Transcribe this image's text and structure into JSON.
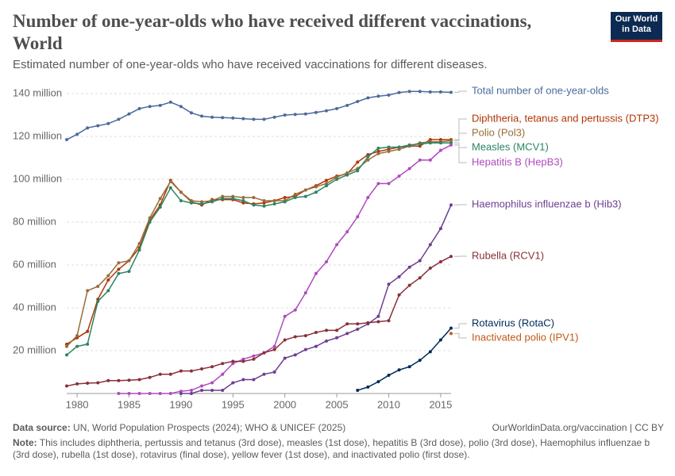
{
  "chart_data": {
    "type": "line",
    "title": "Number of one-year-olds who have received different vaccinations, World",
    "subtitle": "Estimated number of one-year-olds who have received vaccinations for different diseases.",
    "logo": [
      "Our World",
      "in Data"
    ],
    "source_label": "Data source:",
    "source": "UN, World Population Prospects (2024); WHO & UNICEF (2025)",
    "url": "OurWorldinData.org/vaccination | CC BY",
    "note_label": "Note:",
    "note": "This includes diphtheria, pertussis and tetanus (3rd dose), measles (1st dose), hepatitis B (3rd dose), polio (3rd dose), Haemophilus influenzae b (3rd dose), rubella (1st dose), rotavirus (final dose), yellow fever (1st dose), and inactivated polio (first dose).",
    "x": [
      1979,
      1980,
      1981,
      1982,
      1983,
      1984,
      1985,
      1986,
      1987,
      1988,
      1989,
      1990,
      1991,
      1992,
      1993,
      1994,
      1995,
      1996,
      1997,
      1998,
      1999,
      2000,
      2001,
      2002,
      2003,
      2004,
      2005,
      2006,
      2007,
      2008,
      2009,
      2010,
      2011,
      2012,
      2013,
      2014,
      2015,
      2016
    ],
    "xlim": [
      1979,
      2016
    ],
    "xticks": [
      1980,
      1985,
      1990,
      1995,
      2000,
      2005,
      2010,
      2015
    ],
    "ylim": [
      0,
      140
    ],
    "yticks": [
      {
        "value": 20,
        "label": "20 million"
      },
      {
        "value": 40,
        "label": "40 million"
      },
      {
        "value": 60,
        "label": "60 million"
      },
      {
        "value": 80,
        "label": "80 million"
      },
      {
        "value": 100,
        "label": "100 million"
      },
      {
        "value": 120,
        "label": "120 million"
      },
      {
        "value": 140,
        "label": "140 million"
      }
    ],
    "grid": true,
    "series": [
      {
        "name": "Total number of one-year-olds",
        "color": "#4c6a9c",
        "values": [
          118.5,
          121,
          124,
          125,
          126,
          128,
          130.5,
          133,
          134,
          134.5,
          136,
          134,
          131,
          129.5,
          129,
          128.8,
          128.6,
          128.3,
          128,
          128,
          129,
          130,
          130.3,
          130.5,
          131.2,
          132,
          133,
          134.5,
          136.3,
          138,
          138.8,
          139.3,
          140.5,
          141,
          141,
          140.8,
          140.8,
          140.6
        ]
      },
      {
        "name": "Diphtheria, tetanus and pertussis (DTP3)",
        "color": "#b13507",
        "values": [
          23,
          26,
          29,
          44,
          53,
          58,
          62,
          68,
          81,
          88,
          99.5,
          94,
          89.5,
          88,
          90.5,
          90.5,
          90.5,
          89,
          88.5,
          89,
          90,
          91.5,
          92,
          95,
          97,
          99.5,
          101.5,
          102.5,
          108,
          111.5,
          113,
          114,
          115,
          115.5,
          115.5,
          118.5,
          118.5,
          118.5
        ]
      },
      {
        "name": "Polio (Pol3)",
        "color": "#996d39",
        "values": [
          22,
          27,
          48,
          50,
          55,
          61,
          62,
          70,
          82,
          91,
          99,
          94,
          90,
          89.5,
          90,
          92,
          92,
          91.5,
          91.5,
          90,
          90,
          90,
          93,
          95,
          96.5,
          98,
          101,
          103,
          105,
          109,
          112,
          113,
          114,
          115.5,
          117,
          117.5,
          117.5,
          118
        ]
      },
      {
        "name": "Measles (MCV1)",
        "color": "#2c8465",
        "values": [
          18,
          22,
          23,
          43,
          48,
          56,
          57,
          67,
          80,
          87,
          96,
          90,
          89,
          88.5,
          89.5,
          91,
          91,
          90,
          88,
          87.5,
          88.5,
          89.5,
          91.5,
          92,
          94,
          97,
          100,
          102,
          104,
          110.5,
          114.5,
          115,
          115,
          116,
          116.5,
          117,
          117,
          117
        ]
      },
      {
        "name": "Hepatitis B (HepB3)",
        "color": "#b04bbf",
        "values": [
          null,
          null,
          null,
          null,
          null,
          0,
          0,
          0,
          0,
          0,
          0,
          1,
          1.5,
          3.5,
          5,
          9,
          14,
          16,
          17.5,
          19,
          22,
          36,
          39,
          47,
          56,
          61.5,
          69.5,
          75.5,
          82.5,
          91.5,
          98,
          98,
          101.5,
          105,
          109,
          109,
          113.5,
          116
        ]
      },
      {
        "name": "Haemophilus influenzae b (Hib3)",
        "color": "#6d3e91",
        "values": [
          null,
          null,
          null,
          null,
          null,
          null,
          null,
          null,
          null,
          null,
          null,
          0,
          0,
          1.5,
          1.5,
          1.5,
          5,
          6.5,
          6.5,
          9,
          10,
          16.5,
          18,
          20.5,
          22,
          24.5,
          26,
          28,
          30,
          32.5,
          36,
          51,
          54.5,
          59,
          62,
          69.5,
          77,
          88
        ]
      },
      {
        "name": "Rubella (RCV1)",
        "color": "#883039",
        "values": [
          3.5,
          4.5,
          4.8,
          5,
          6,
          6,
          6.2,
          6.5,
          7.5,
          9,
          9,
          10.5,
          10.5,
          11.5,
          12.5,
          14,
          15,
          15,
          16,
          19,
          20.5,
          25,
          26.5,
          27,
          28.5,
          29.5,
          29.5,
          32.5,
          32.5,
          33,
          33.5,
          34,
          46,
          50.5,
          54,
          58.5,
          61.5,
          64
        ]
      },
      {
        "name": "Rotavirus (RotaC)",
        "color": "#00295b",
        "values": [
          null,
          null,
          null,
          null,
          null,
          null,
          null,
          null,
          null,
          null,
          null,
          null,
          null,
          null,
          null,
          null,
          null,
          null,
          null,
          null,
          null,
          null,
          null,
          null,
          null,
          null,
          null,
          null,
          1.5,
          3,
          5.5,
          8.5,
          11,
          12.5,
          15.5,
          19.5,
          25,
          30.5
        ]
      },
      {
        "name": "Inactivated polio (IPV1)",
        "color": "#c05917",
        "values": [
          null,
          null,
          null,
          null,
          null,
          null,
          null,
          null,
          null,
          null,
          null,
          null,
          null,
          null,
          null,
          null,
          null,
          null,
          null,
          null,
          null,
          null,
          null,
          null,
          null,
          null,
          null,
          null,
          null,
          null,
          null,
          null,
          null,
          null,
          null,
          null,
          null,
          28
        ]
      }
    ]
  }
}
